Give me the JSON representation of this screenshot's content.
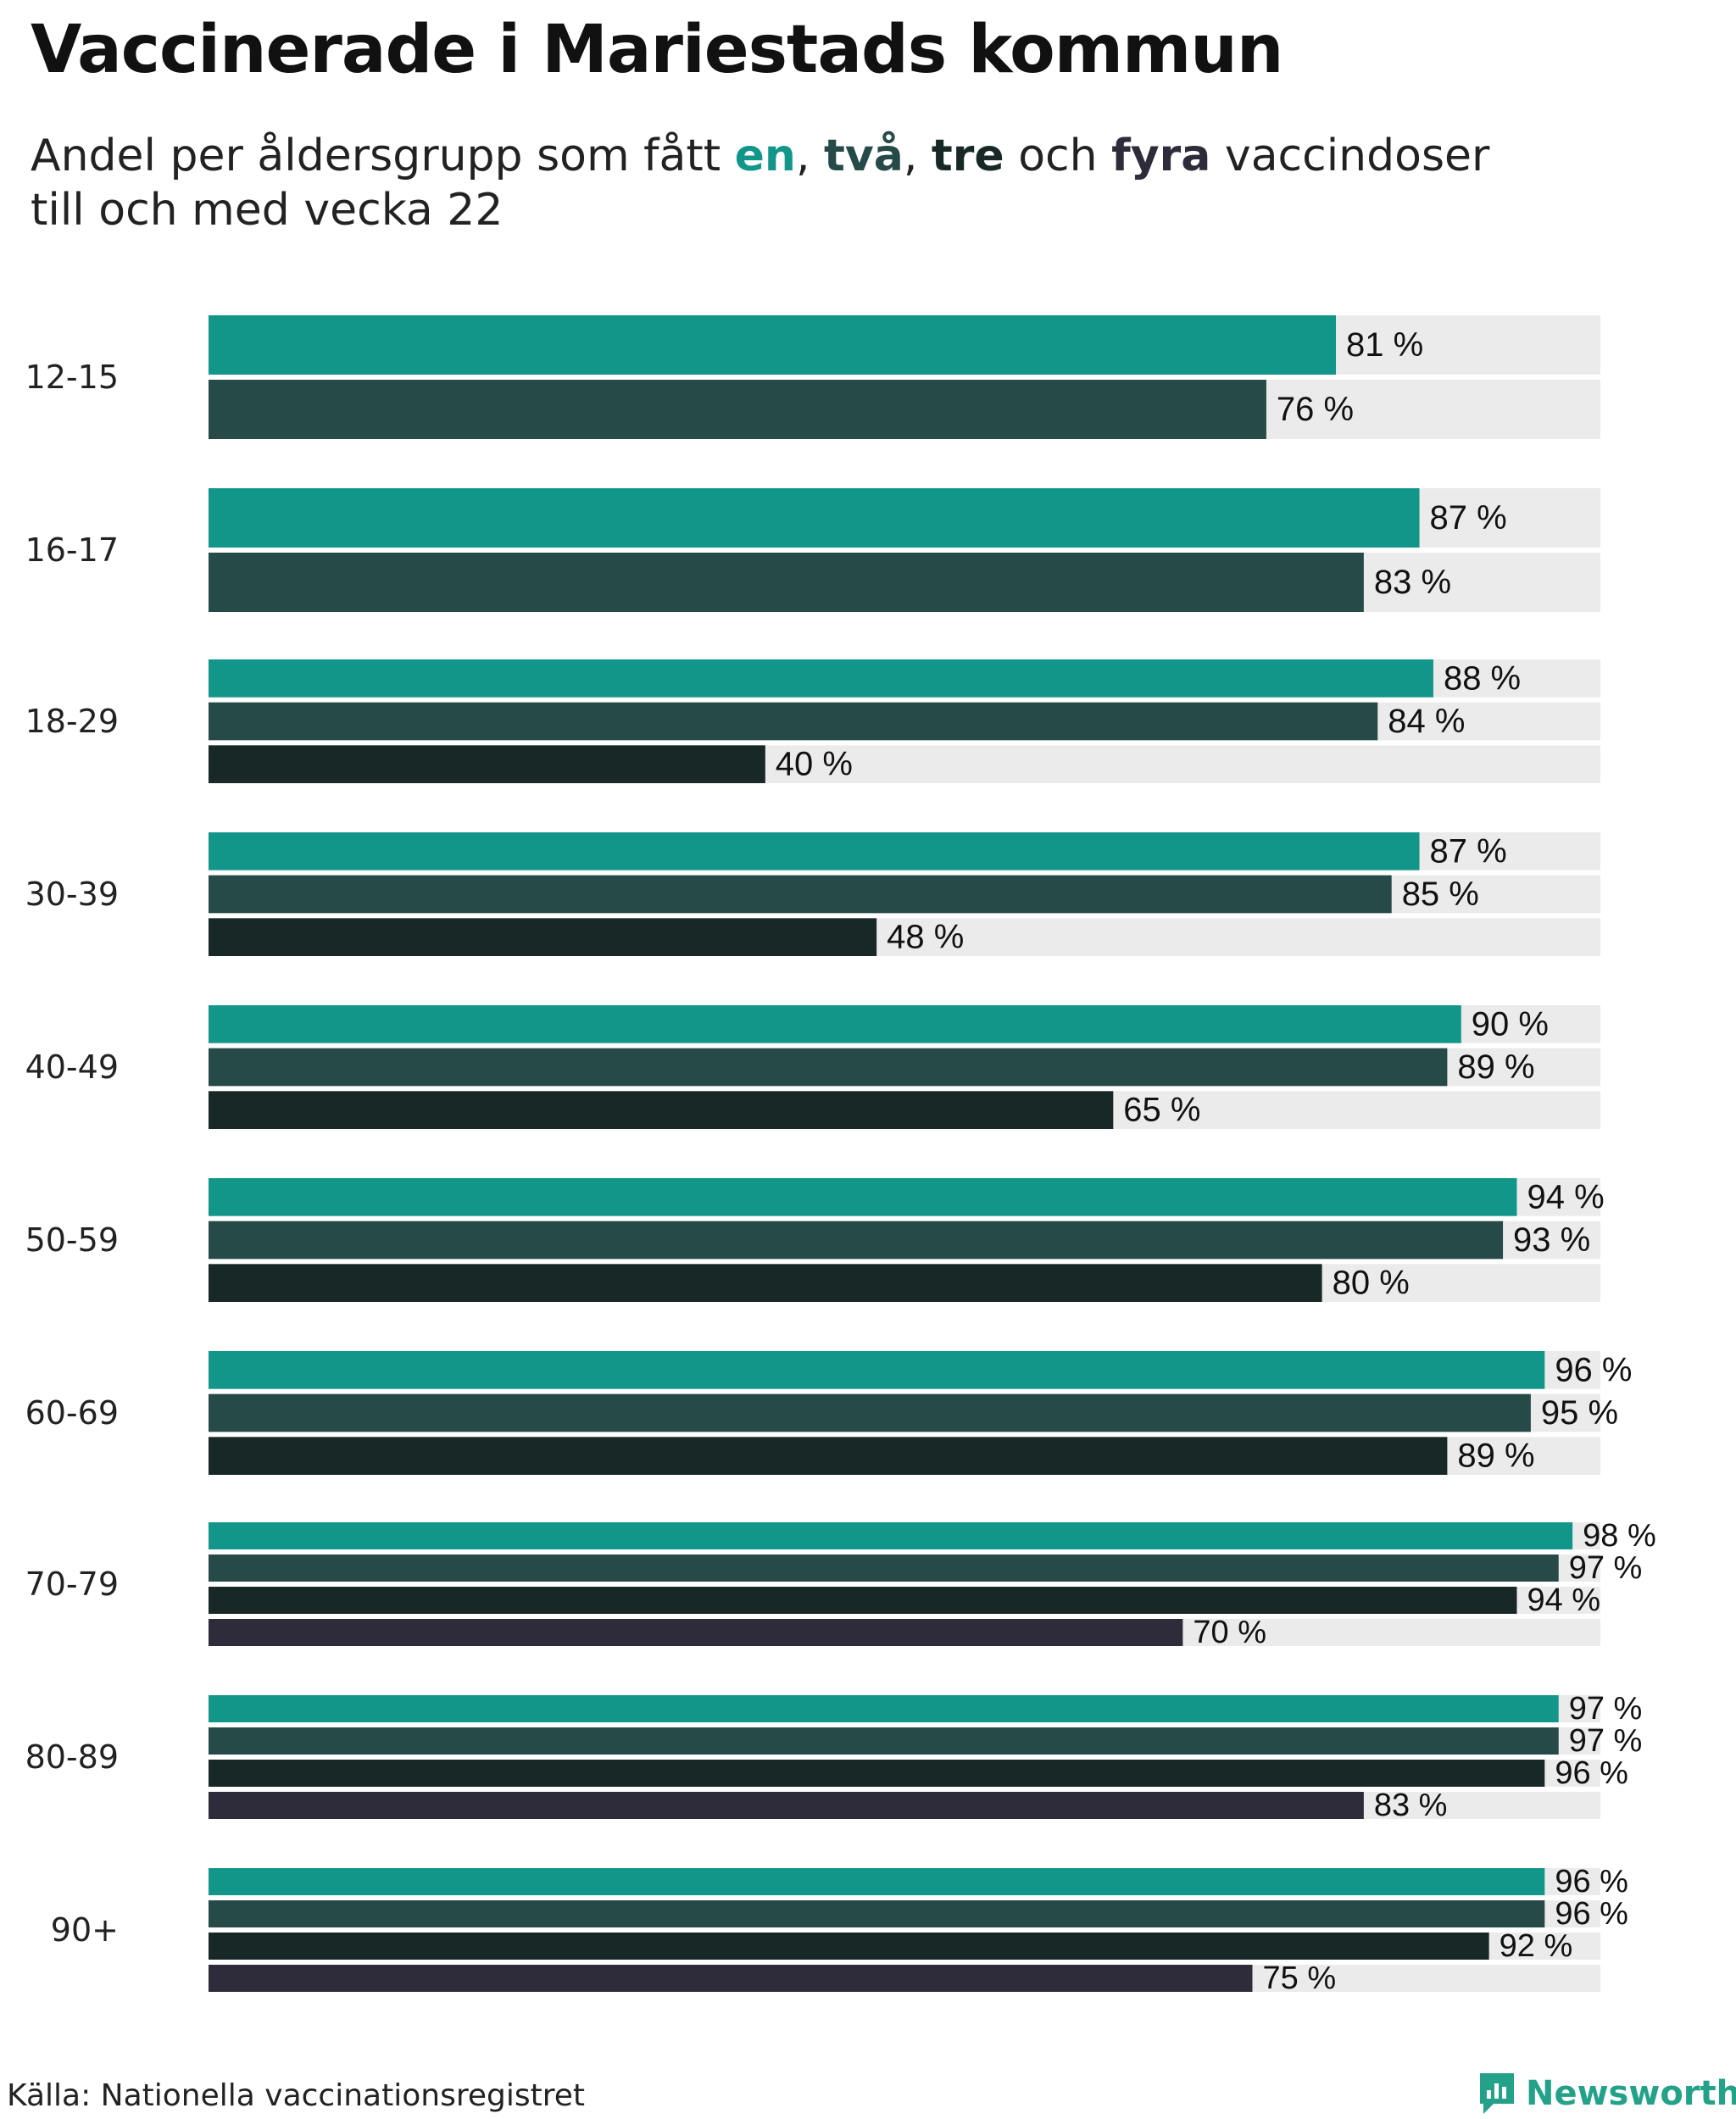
{
  "header": {
    "title": "Vaccinerade i Mariestads kommun",
    "subtitle_pre": "Andel per åldersgrupp som fått ",
    "dose_words": [
      "en",
      "två",
      "tre",
      "fyra"
    ],
    "sep_1": ", ",
    "sep_2": ", ",
    "sep_3": " och ",
    "subtitle_post": " vaccindoser",
    "subtitle_line2": "till och med vecka 22"
  },
  "colors": {
    "dose1": "#13968a",
    "dose2": "#264a48",
    "dose3": "#172826",
    "dose4": "#2e2c3a",
    "track": "#ebebeb",
    "brand": "#24a189"
  },
  "footer": {
    "source": "Källa: Nationella vaccinationsregistret",
    "brand": "Newsworthy",
    "brand_icon": "newsworthy-logo-icon"
  },
  "chart_data": {
    "type": "bar",
    "orientation": "horizontal",
    "value_suffix": " %",
    "xlim": [
      0,
      100
    ],
    "categories": [
      "12-15",
      "16-17",
      "18-29",
      "30-39",
      "40-49",
      "50-59",
      "60-69",
      "70-79",
      "80-89",
      "90+"
    ],
    "series": [
      {
        "name": "en",
        "values": [
          81,
          87,
          88,
          87,
          90,
          94,
          96,
          98,
          97,
          96
        ]
      },
      {
        "name": "två",
        "values": [
          76,
          83,
          84,
          85,
          89,
          93,
          95,
          97,
          97,
          96
        ]
      },
      {
        "name": "tre",
        "values": [
          null,
          null,
          40,
          48,
          65,
          80,
          89,
          94,
          96,
          92
        ]
      },
      {
        "name": "fyra",
        "values": [
          null,
          null,
          null,
          null,
          null,
          null,
          null,
          70,
          83,
          75
        ]
      }
    ],
    "title": "Vaccinerade i Mariestads kommun",
    "xlabel": "",
    "ylabel": ""
  }
}
